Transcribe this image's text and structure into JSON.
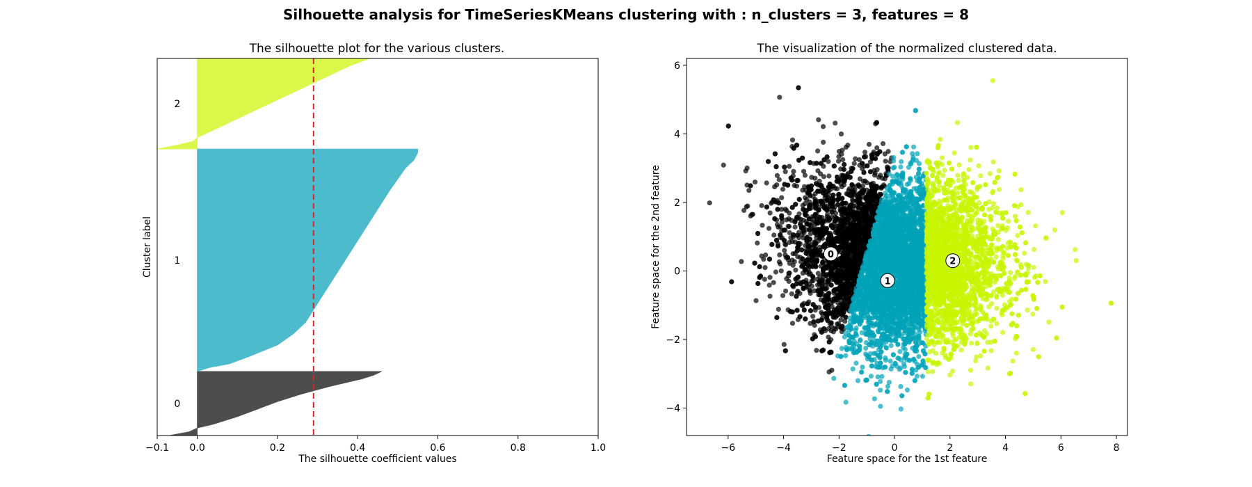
{
  "figure": {
    "suptitle": "Silhouette analysis for TimeSeriesKMeans clustering  with : n_clusters = 3, features = 8"
  },
  "chart_data": [
    {
      "type": "area",
      "subtype": "silhouette",
      "title": "The silhouette plot  for the various clusters.",
      "xlabel": "The silhouette coefficient values",
      "ylabel": "Cluster label",
      "xlim": [
        -0.1,
        1.0
      ],
      "xticks": [
        "−0.1",
        "0.0",
        "0.2",
        "0.4",
        "0.6",
        "0.8",
        "1.0"
      ],
      "xtick_values": [
        -0.1,
        0.0,
        0.2,
        0.4,
        0.6,
        0.8,
        1.0
      ],
      "ylim": [
        0,
        100
      ],
      "average_silhouette": 0.29,
      "average_line_color": "#d62728",
      "clusters": [
        {
          "label": "0",
          "color": "#4d4d4d",
          "y_start": 0,
          "y_end": 17,
          "profile": [
            [
              0,
              -0.07
            ],
            [
              1,
              -0.02
            ],
            [
              2,
              0
            ],
            [
              3,
              0.04
            ],
            [
              5,
              0.1
            ],
            [
              7,
              0.15
            ],
            [
              9,
              0.2
            ],
            [
              11,
              0.26
            ],
            [
              13,
              0.33
            ],
            [
              14,
              0.37
            ],
            [
              15,
              0.41
            ],
            [
              16,
              0.44
            ],
            [
              17,
              0.46
            ]
          ]
        },
        {
          "label": "1",
          "color": "#4cbccc",
          "y_start": 17,
          "y_end": 76,
          "profile": [
            [
              17,
              0
            ],
            [
              18,
              0.03
            ],
            [
              19,
              0.08
            ],
            [
              21,
              0.13
            ],
            [
              24,
              0.2
            ],
            [
              27,
              0.24
            ],
            [
              30,
              0.27
            ],
            [
              35,
              0.3
            ],
            [
              40,
              0.33
            ],
            [
              45,
              0.36
            ],
            [
              50,
              0.39
            ],
            [
              55,
              0.42
            ],
            [
              60,
              0.45
            ],
            [
              65,
              0.48
            ],
            [
              68,
              0.5
            ],
            [
              71,
              0.52
            ],
            [
              73,
              0.54
            ],
            [
              74,
              0.545
            ],
            [
              75,
              0.55
            ],
            [
              76,
              0.55
            ]
          ]
        },
        {
          "label": "2",
          "color": "#dbf84a",
          "y_start": 76,
          "y_end": 100,
          "profile": [
            [
              76,
              -0.1
            ],
            [
              77,
              -0.05
            ],
            [
              78,
              -0.01
            ],
            [
              79,
              0
            ],
            [
              80,
              0.02
            ],
            [
              82,
              0.06
            ],
            [
              85,
              0.12
            ],
            [
              88,
              0.18
            ],
            [
              91,
              0.24
            ],
            [
              94,
              0.3
            ],
            [
              96,
              0.34
            ],
            [
              98,
              0.38
            ],
            [
              100,
              0.43
            ]
          ]
        }
      ]
    },
    {
      "type": "scatter",
      "title": "The visualization of the normalized clustered data.",
      "xlabel": "Feature space for the 1st feature",
      "ylabel": "Feature space for the 2nd feature",
      "xlim": [
        -7.5,
        8.4
      ],
      "ylim": [
        -4.8,
        6.2
      ],
      "xticks": [
        "−6",
        "−4",
        "−2",
        "0",
        "2",
        "4",
        "6",
        "8"
      ],
      "xtick_values": [
        -6,
        -4,
        -2,
        0,
        2,
        4,
        6,
        8
      ],
      "yticks": [
        "−4",
        "−2",
        "0",
        "2",
        "4",
        "6"
      ],
      "ytick_values": [
        -4,
        -2,
        0,
        2,
        4,
        6
      ],
      "series": [
        {
          "name": "0",
          "color": "#000000",
          "x_range": [
            -6.8,
            1.0
          ],
          "y_range": [
            -2.0,
            5.6
          ],
          "approx_points": 2500
        },
        {
          "name": "1",
          "color": "#00a2b8",
          "x_range": [
            -1.6,
            1.2
          ],
          "y_range": [
            -3.4,
            3.0
          ],
          "approx_points": 2500
        },
        {
          "name": "2",
          "color": "#c8f500",
          "x_range": [
            0.2,
            7.6
          ],
          "y_range": [
            -4.2,
            5.6
          ],
          "approx_points": 2500
        }
      ],
      "centers": [
        {
          "label": "0",
          "x": -2.3,
          "y": 0.5
        },
        {
          "label": "1",
          "x": -0.25,
          "y": -0.28
        },
        {
          "label": "2",
          "x": 2.1,
          "y": 0.3
        }
      ]
    }
  ]
}
